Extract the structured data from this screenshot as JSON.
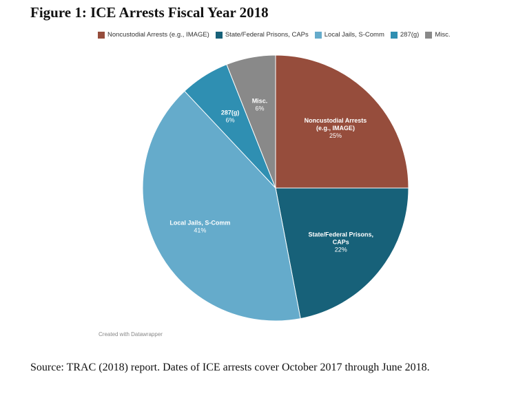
{
  "title": "Figure 1: ICE Arrests Fiscal Year 2018",
  "chart_data": {
    "type": "pie",
    "title": "",
    "legend_position": "top",
    "slices": [
      {
        "name": "Noncustodial Arrests (e.g., IMAGE)",
        "label_lines": [
          "Noncustodial Arrests",
          "(e.g., IMAGE)"
        ],
        "value": 25,
        "value_label": "25%",
        "color": "#964d3c"
      },
      {
        "name": "State/Federal Prisons, CAPs",
        "label_lines": [
          "State/Federal Prisons,",
          "CAPs"
        ],
        "value": 22,
        "value_label": "22%",
        "color": "#176179"
      },
      {
        "name": "Local Jails, S-Comm",
        "label_lines": [
          "Local Jails, S-Comm"
        ],
        "value": 41,
        "value_label": "41%",
        "color": "#65abcb"
      },
      {
        "name": "287(g)",
        "label_lines": [
          "287(g)"
        ],
        "value": 6,
        "value_label": "6%",
        "color": "#2f8fb2"
      },
      {
        "name": "Misc.",
        "label_lines": [
          "Misc."
        ],
        "value": 6,
        "value_label": "6%",
        "color": "#898989"
      }
    ]
  },
  "credit": "Created with Datawrapper",
  "source": "Source: TRAC (2018) report. Dates of ICE arrests cover October 2017 through June 2018."
}
